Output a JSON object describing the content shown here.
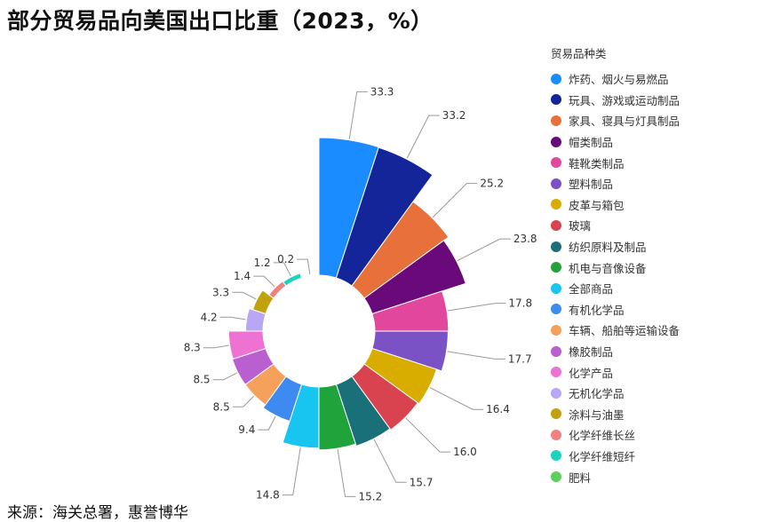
{
  "title": "部分贸易品向美国出口比重（2023，%）",
  "source": "来源：海关总署，惠誉博华",
  "legend_title": "贸易品种类",
  "chart_data": {
    "type": "pie",
    "subtype": "nightingale-rose-donut",
    "unit": "%",
    "categories": [
      "炸药、烟火与易燃品",
      "玩具、游戏或运动制品",
      "家具、寝具与灯具制品",
      "帽类制品",
      "鞋靴类制品",
      "塑料制品",
      "皮革与箱包",
      "玻璃",
      "纺织原料及制品",
      "机电与音像设备",
      "全部商品",
      "有机化学品",
      "车辆、船舶等运输设备",
      "橡胶制品",
      "化学产品",
      "无机化学品",
      "涂料与油墨",
      "化学纤维长丝",
      "化学纤维短纤",
      "肥料"
    ],
    "values": [
      33.3,
      33.2,
      25.2,
      23.8,
      17.8,
      17.7,
      16.4,
      16.0,
      15.7,
      15.2,
      14.8,
      9.4,
      8.5,
      8.5,
      8.3,
      4.2,
      3.3,
      1.4,
      1.2,
      0.2
    ],
    "value_labels": [
      "33.3",
      "33.2",
      "25.2",
      "23.8",
      "17.8",
      "17.7",
      "16.4",
      "16.0",
      "15.7",
      "15.2",
      "14.8",
      "9.4",
      "8.5",
      "8.5",
      "8.3",
      "4.2",
      "3.3",
      "1.4",
      "1.2",
      "0.2"
    ],
    "colors": [
      "#1a8cff",
      "#14259a",
      "#e8703a",
      "#6a0a7a",
      "#e2479e",
      "#7a52c5",
      "#d9ad00",
      "#d9434f",
      "#1a7079",
      "#1fa33a",
      "#18c4f0",
      "#3d8af0",
      "#f5a05b",
      "#ba5fcf",
      "#ee72d4",
      "#b9a6f5",
      "#c1a10d",
      "#f28080",
      "#1ad4bf",
      "#5ccf5c"
    ],
    "legend_position": "right"
  }
}
